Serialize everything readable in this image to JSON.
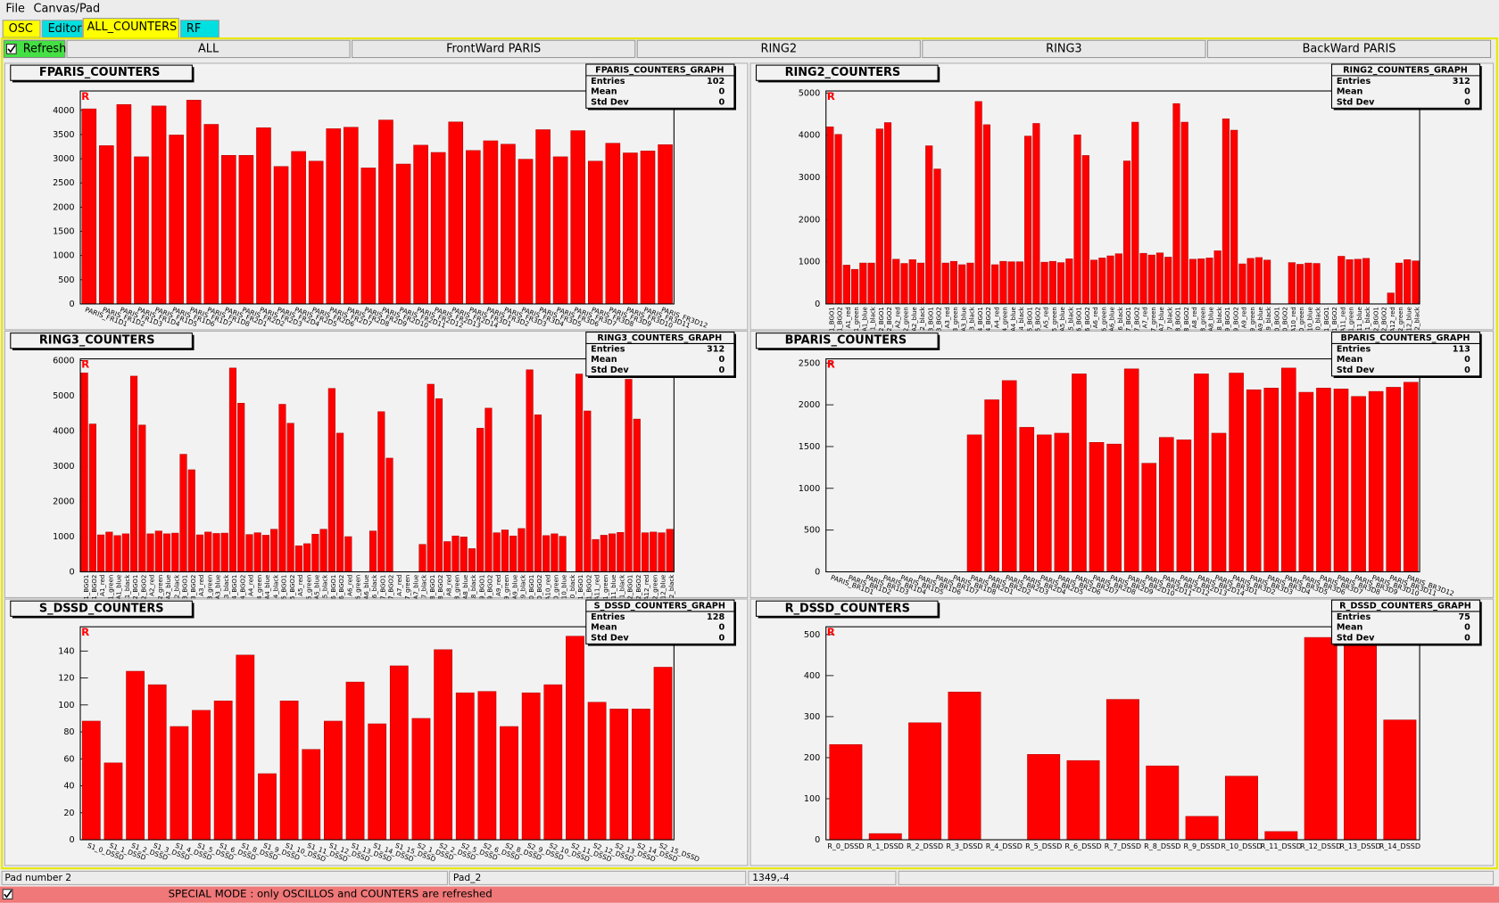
{
  "menu": [
    "File",
    "Canvas/Pad"
  ],
  "tabs": [
    "OSC",
    "Editor",
    "ALL_COUNTERS",
    "RF"
  ],
  "refresh": "Refresh",
  "subtabs": [
    "ALL",
    "FrontWard PARIS",
    "RING2",
    "RING3",
    "BackWard PARIS"
  ],
  "pad_marker": "R",
  "chart_data": [
    {
      "type": "bar",
      "title": "FPARIS_COUNTERS",
      "color": "#ff0000",
      "stats": {
        "title": "FPARIS_COUNTERS_GRAPH",
        "rows": [
          {
            "label": "Entries",
            "value": 102
          },
          {
            "label": "Mean",
            "value": 0
          },
          {
            "label": "Std Dev",
            "value": 0
          }
        ]
      },
      "categories": [
        "PARIS_FR1D1",
        "PARIS_FR1D2",
        "PARIS_FR1D3",
        "PARIS_FR1D4",
        "PARIS_FR1D5",
        "PARIS_FR1D6",
        "PARIS_FR1D7",
        "PARIS_FR1D8",
        "PARIS_FR2D1",
        "PARIS_FR2D2",
        "PARIS_FR2D3",
        "PARIS_FR2D4",
        "PARIS_FR2D5",
        "PARIS_FR2D6",
        "PARIS_FR2D7",
        "PARIS_FR2D8",
        "PARIS_FR2D9",
        "PARIS_FR2D10",
        "PARIS_FR2D11",
        "PARIS_FR2D12",
        "PARIS_FR2D13",
        "PARIS_FR2D14",
        "PARIS_FR3D1",
        "PARIS_FR3D2",
        "PARIS_FR3D3",
        "PARIS_FR3D4",
        "PARIS_FR3D5",
        "PARIS_FR3D6",
        "PARIS_FR3D7",
        "PARIS_FR3D8",
        "PARIS_FR3D9",
        "PARIS_FR3D10",
        "PARIS_FR3D11",
        "PARIS_FR3D12"
      ],
      "values": [
        4030,
        3270,
        4120,
        3040,
        4090,
        3490,
        4210,
        3710,
        3070,
        3070,
        3640,
        2840,
        3150,
        2950,
        3620,
        3650,
        2810,
        3800,
        2890,
        3280,
        3130,
        3760,
        3170,
        3370,
        3300,
        2990,
        3600,
        3040,
        3580,
        2950,
        3320,
        3120,
        3160,
        3290
      ],
      "ylim": [
        0,
        4400
      ],
      "yticks": [
        0,
        500,
        1000,
        1500,
        2000,
        2500,
        3000,
        3500,
        4000
      ]
    },
    {
      "type": "bar",
      "title": "RING2_COUNTERS",
      "color": "#ff0000",
      "stats": {
        "title": "RING2_COUNTERS_GRAPH",
        "rows": [
          {
            "label": "Entries",
            "value": 312
          },
          {
            "label": "Mean",
            "value": 0
          },
          {
            "label": "Std Dev",
            "value": 0
          }
        ]
      },
      "categories": [
        "1_BGO1",
        "1_BGO2",
        "A1_red",
        "A1_green",
        "A1_blue",
        "A1_black",
        "2_BGO1",
        "2_BGO2",
        "A2_red",
        "A2_green",
        "A2_blue",
        "A2_black",
        "3_BGO1",
        "3_BGO2",
        "A3_red",
        "A3_green",
        "A3_blue",
        "A3_black",
        "4_BGO1",
        "4_BGO2",
        "A4_red",
        "A4_green",
        "A4_blue",
        "A4_black",
        "5_BGO1",
        "5_BGO2",
        "A5_red",
        "A5_green",
        "A5_blue",
        "A5_black",
        "6_BGO1",
        "6_BGO2",
        "A6_red",
        "A6_green",
        "A6_blue",
        "A6_black",
        "7_BGO1",
        "7_BGO2",
        "A7_red",
        "A7_green",
        "A7_blue",
        "A7_black",
        "8_BGO1",
        "8_BGO2",
        "A8_red",
        "A8_green",
        "A8_blue",
        "A8_black",
        "9_BGO1",
        "9_BGO2",
        "A9_red",
        "A9_green",
        "A9_blue",
        "A9_black",
        "10_BGO1",
        "10_BGO2",
        "A10_red",
        "A10_green",
        "A10_blue",
        "A10_black",
        "11_BGO1",
        "11_BGO2",
        "A11_red",
        "A11_green",
        "A11_blue",
        "A11_black",
        "12_BGO1",
        "12_BGO2",
        "A12_red",
        "A12_green",
        "A12_blue",
        "A12_black"
      ],
      "values": [
        4200,
        4020,
        920,
        820,
        970,
        970,
        4150,
        4300,
        1060,
        960,
        1050,
        970,
        3750,
        3200,
        970,
        1010,
        930,
        970,
        4800,
        4250,
        930,
        1010,
        1000,
        1000,
        3980,
        4280,
        990,
        1010,
        980,
        1070,
        4010,
        3520,
        1040,
        1090,
        1140,
        1190,
        3390,
        4310,
        1200,
        1160,
        1210,
        1110,
        4750,
        4310,
        1060,
        1070,
        1090,
        1260,
        4390,
        4120,
        950,
        1080,
        1100,
        1040,
        0,
        0,
        980,
        940,
        970,
        960,
        0,
        0,
        1130,
        1050,
        1060,
        1080,
        0,
        0,
        260,
        970,
        1050,
        1020
      ],
      "ylim": [
        0,
        5050
      ],
      "yticks": [
        0,
        1000,
        2000,
        3000,
        4000,
        5000
      ]
    },
    {
      "type": "bar",
      "title": "RING3_COUNTERS",
      "color": "#ff0000",
      "stats": {
        "title": "RING3_COUNTERS_GRAPH",
        "rows": [
          {
            "label": "Entries",
            "value": 312
          },
          {
            "label": "Mean",
            "value": 0
          },
          {
            "label": "Std Dev",
            "value": 0
          }
        ]
      },
      "categories": [
        "1_BGO1",
        "1_BGO2",
        "A1_red",
        "A1_green",
        "A1_blue",
        "A1_black",
        "2_BGO1",
        "2_BGO2",
        "A2_red",
        "A2_green",
        "A2_blue",
        "A2_black",
        "3_BGO1",
        "3_BGO2",
        "A3_red",
        "A3_green",
        "A3_blue",
        "A3_black",
        "4_BGO1",
        "4_BGO2",
        "A4_red",
        "A4_green",
        "A4_blue",
        "A4_black",
        "5_BGO1",
        "5_BGO2",
        "A5_red",
        "A5_green",
        "A5_blue",
        "A5_black",
        "6_BGO1",
        "6_BGO2",
        "A6_red",
        "A6_green",
        "A6_blue",
        "A6_black",
        "7_BGO1",
        "7_BGO2",
        "A7_red",
        "A7_green",
        "A7_blue",
        "A7_black",
        "8_BGO1",
        "8_BGO2",
        "A8_red",
        "A8_green",
        "A8_blue",
        "A8_black",
        "9_BGO1",
        "9_BGO2",
        "A9_red",
        "A9_green",
        "A9_blue",
        "A9_black",
        "10_BGO1",
        "10_BGO2",
        "A10_red",
        "A10_green",
        "A10_blue",
        "A10_black",
        "11_BGO1",
        "11_BGO2",
        "A11_red",
        "A11_green",
        "A11_blue",
        "A11_black",
        "12_BGO1",
        "12_BGO2",
        "A12_red",
        "A12_green",
        "A12_blue",
        "A12_black"
      ],
      "values": [
        5650,
        4200,
        1050,
        1130,
        1030,
        1080,
        5560,
        4170,
        1080,
        1160,
        1080,
        1100,
        3340,
        2900,
        1050,
        1130,
        1090,
        1100,
        5790,
        4790,
        1060,
        1110,
        1040,
        1210,
        4760,
        4220,
        740,
        800,
        1070,
        1210,
        5210,
        3940,
        1000,
        0,
        0,
        1160,
        4550,
        3230,
        0,
        0,
        0,
        780,
        5330,
        4920,
        860,
        1020,
        990,
        660,
        4080,
        4650,
        1110,
        1190,
        1020,
        1230,
        5740,
        4460,
        1030,
        1080,
        1010,
        0,
        5620,
        4570,
        920,
        1040,
        1080,
        1120,
        5470,
        4340,
        1110,
        1130,
        1110,
        1210
      ],
      "ylim": [
        0,
        6050
      ],
      "yticks": [
        0,
        1000,
        2000,
        3000,
        4000,
        5000,
        6000
      ]
    },
    {
      "type": "bar",
      "title": "BPARIS_COUNTERS",
      "color": "#ff0000",
      "stats": {
        "title": "BPARIS_COUNTERS_GRAPH",
        "rows": [
          {
            "label": "Entries",
            "value": 113
          },
          {
            "label": "Mean",
            "value": 0
          },
          {
            "label": "Std Dev",
            "value": 0
          }
        ]
      },
      "categories": [
        "PARIS_BR1D1",
        "PARIS_BR1D2",
        "PARIS_BR1D3",
        "PARIS_BR1D4",
        "PARIS_BR1D5",
        "PARIS_BR1D6",
        "PARIS_BR1D7",
        "PARIS_BR1D8",
        "PARIS_BR2D1",
        "PARIS_BR2D2",
        "PARIS_BR2D3",
        "PARIS_BR2D4",
        "PARIS_BR2D5",
        "PARIS_BR2D6",
        "PARIS_BR2D7",
        "PARIS_BR2D8",
        "PARIS_BR2D9",
        "PARIS_BR2D10",
        "PARIS_BR2D11",
        "PARIS_BR2D12",
        "PARIS_BR2D13",
        "PARIS_BR2D14",
        "PARIS_BR3D1",
        "PARIS_BR3D2",
        "PARIS_BR3D3",
        "PARIS_BR3D4",
        "PARIS_BR3D5",
        "PARIS_BR3D6",
        "PARIS_BR3D7",
        "PARIS_BR3D8",
        "PARIS_BR3D9",
        "PARIS_BR3D10",
        "PARIS_BR3D11",
        "PARIS_BR3D12"
      ],
      "values": [
        0,
        0,
        0,
        0,
        0,
        0,
        0,
        0,
        1640,
        2060,
        2290,
        1730,
        1640,
        1660,
        2370,
        1550,
        1530,
        2430,
        1300,
        1610,
        1580,
        2370,
        1660,
        2380,
        2180,
        2200,
        2440,
        2150,
        2200,
        2190,
        2100,
        2160,
        2210,
        2270
      ],
      "ylim": [
        0,
        2550
      ],
      "yticks": [
        0,
        500,
        1000,
        1500,
        2000,
        2500
      ]
    },
    {
      "type": "bar",
      "title": "S_DSSD_COUNTERS",
      "color": "#ff0000",
      "stats": {
        "title": "S_DSSD_COUNTERS_GRAPH",
        "rows": [
          {
            "label": "Entries",
            "value": 128
          },
          {
            "label": "Mean",
            "value": 0
          },
          {
            "label": "Std Dev",
            "value": 0
          }
        ]
      },
      "categories": [
        "S1_0_DSSD",
        "S1_1_DSSD",
        "S1_2_DSSD",
        "S1_3_DSSD",
        "S1_4_DSSD",
        "S1_5_DSSD",
        "S1_6_DSSD",
        "S1_8_DSSD",
        "S1_9_DSSD",
        "S1_10_DSSD",
        "S1_11_DSSD",
        "S1_12_DSSD",
        "S1_13_DSSD",
        "S1_14_DSSD",
        "S1_15_DSSD",
        "S2_1_DSSD",
        "S2_2_DSSD",
        "S2_5_DSSD",
        "S2_6_DSSD",
        "S2_8_DSSD",
        "S2_9_DSSD",
        "S2_10_DSSD",
        "S2_11_DSSD",
        "S2_12_DSSD",
        "S2_13_DSSD",
        "S2_14_DSSD",
        "S2_15_DSSD"
      ],
      "values": [
        88,
        57,
        125,
        115,
        84,
        96,
        103,
        137,
        49,
        103,
        67,
        88,
        117,
        86,
        129,
        90,
        141,
        109,
        110,
        84,
        109,
        115,
        151,
        102,
        97,
        97,
        128
      ],
      "ylim": [
        0,
        158
      ],
      "yticks": [
        0,
        20,
        40,
        60,
        80,
        100,
        120,
        140
      ]
    },
    {
      "type": "bar",
      "title": "R_DSSD_COUNTERS",
      "color": "#ff0000",
      "stats": {
        "title": "R_DSSD_COUNTERS_GRAPH",
        "rows": [
          {
            "label": "Entries",
            "value": 75
          },
          {
            "label": "Mean",
            "value": 0
          },
          {
            "label": "Std Dev",
            "value": 0
          }
        ]
      },
      "categories": [
        "R_0_DSSD",
        "R_1_DSSD",
        "R_2_DSSD",
        "R_3_DSSD",
        "R_4_DSSD",
        "R_5_DSSD",
        "R_6_DSSD",
        "R_7_DSSD",
        "R_8_DSSD",
        "R_9_DSSD",
        "R_10_DSSD",
        "R_11_DSSD",
        "R_12_DSSD",
        "R_13_DSSD",
        "R_14_DSSD"
      ],
      "values": [
        232,
        15,
        285,
        360,
        0,
        208,
        193,
        342,
        180,
        57,
        155,
        20,
        493,
        488,
        292
      ],
      "ylim": [
        0,
        519
      ],
      "yticks": [
        0,
        100,
        200,
        300,
        400,
        500
      ]
    }
  ],
  "status": [
    "Pad number 2",
    "Pad_2",
    "1349,-4"
  ],
  "special": "SPECIAL MODE : only OSCILLOS and COUNTERS are refreshed"
}
